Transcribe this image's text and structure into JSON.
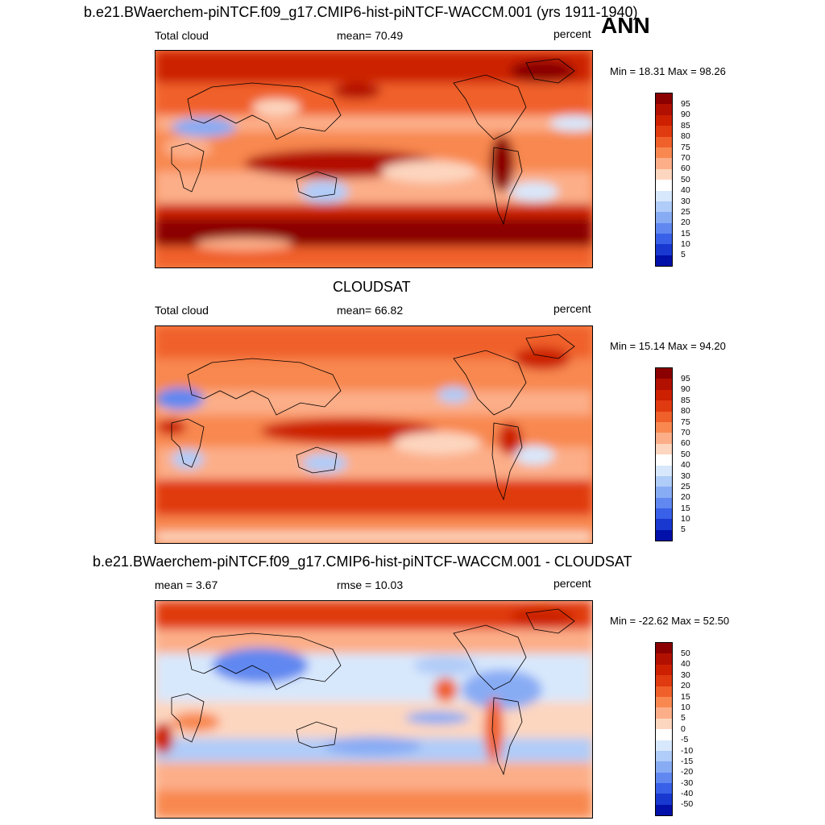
{
  "header": {
    "top_title": "b.e21.BWaerchem-piNTCF.f09_g17.CMIP6-hist-piNTCF-WACCM.001 (yrs 1911-1940)",
    "season": "ANN"
  },
  "panels": [
    {
      "id": "model",
      "center_title": "",
      "left_label": "Total cloud",
      "middle_label": "mean=  70.49",
      "right_label": "percent",
      "minmax": "Min =  18.31 Max =  98.26",
      "levels": [
        "95",
        "90",
        "85",
        "80",
        "75",
        "70",
        "60",
        "50",
        "40",
        "30",
        "25",
        "20",
        "15",
        "10",
        "5"
      ],
      "colors": [
        "#8b0000",
        "#b21000",
        "#cc2000",
        "#e03a10",
        "#f0602a",
        "#f88850",
        "#fcae88",
        "#fdd6bf",
        "#ffffff",
        "#d8e8fc",
        "#b0ccf8",
        "#88acf4",
        "#6088f0",
        "#3860e8",
        "#1838d0",
        "#0010a8"
      ]
    },
    {
      "id": "obs",
      "center_title": "CLOUDSAT",
      "left_label": "Total cloud",
      "middle_label": "mean=  66.82",
      "right_label": "percent",
      "minmax": "Min =  15.14 Max =  94.20",
      "levels": [
        "95",
        "90",
        "85",
        "80",
        "75",
        "70",
        "60",
        "50",
        "40",
        "30",
        "25",
        "20",
        "15",
        "10",
        "5"
      ],
      "colors": [
        "#8b0000",
        "#b21000",
        "#cc2000",
        "#e03a10",
        "#f0602a",
        "#f88850",
        "#fcae88",
        "#fdd6bf",
        "#ffffff",
        "#d8e8fc",
        "#b0ccf8",
        "#88acf4",
        "#6088f0",
        "#3860e8",
        "#1838d0",
        "#0010a8"
      ]
    },
    {
      "id": "diff",
      "center_title": "b.e21.BWaerchem-piNTCF.f09_g17.CMIP6-hist-piNTCF-WACCM.001 - CLOUDSAT",
      "left_label": "mean =   3.67",
      "middle_label": "rmse =  10.03",
      "right_label": "percent",
      "minmax": "Min = -22.62 Max =  52.50",
      "levels": [
        "50",
        "40",
        "30",
        "20",
        "15",
        "10",
        "5",
        "0",
        "-5",
        "-10",
        "-15",
        "-20",
        "-30",
        "-40",
        "-50"
      ],
      "colors": [
        "#8b0000",
        "#b21000",
        "#cc2000",
        "#e03a10",
        "#f0602a",
        "#f88850",
        "#fcae88",
        "#fdd6bf",
        "#ffffff",
        "#d8e8fc",
        "#b0ccf8",
        "#88acf4",
        "#6088f0",
        "#3860e8",
        "#1838d0",
        "#0010a8"
      ]
    }
  ]
}
